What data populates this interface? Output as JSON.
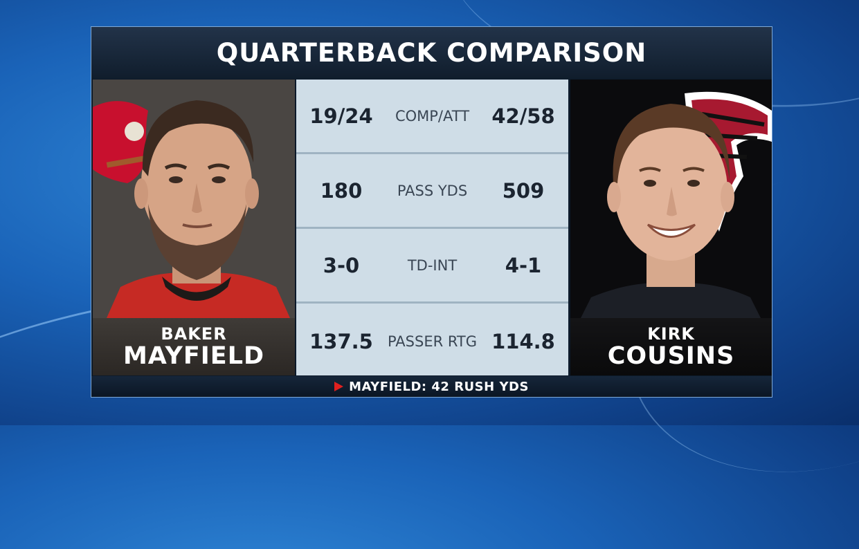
{
  "header": {
    "title": "QUARTERBACK COMPARISON"
  },
  "players": {
    "left": {
      "first_name": "BAKER",
      "last_name": "MAYFIELD",
      "team_logo": "buccaneers-logo",
      "accent": "#c8102e"
    },
    "right": {
      "first_name": "KIRK",
      "last_name": "COUSINS",
      "team_logo": "falcons-logo",
      "accent": "#a71930"
    }
  },
  "stats": [
    {
      "label": "COMP/ATT",
      "left": "19/24",
      "right": "42/58"
    },
    {
      "label": "PASS YDS",
      "left": "180",
      "right": "509"
    },
    {
      "label": "TD-INT",
      "left": "3-0",
      "right": "4-1"
    },
    {
      "label": "PASSER RTG",
      "left": "137.5",
      "right": "114.8"
    }
  ],
  "footer": {
    "icon": "play-icon",
    "text": "MAYFIELD: 42 RUSH YDS"
  }
}
